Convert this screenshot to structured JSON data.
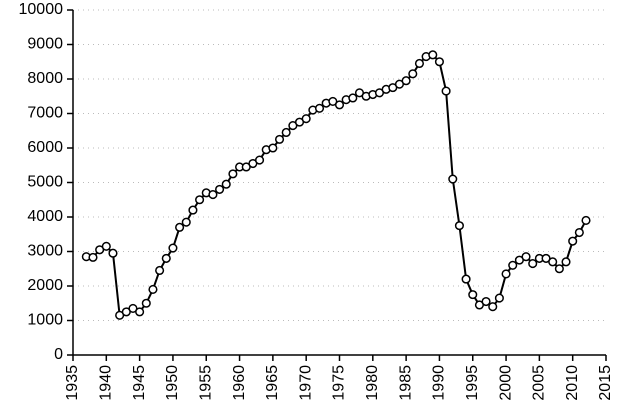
{
  "chart_data": {
    "type": "line",
    "x": [
      1937,
      1938,
      1939,
      1940,
      1941,
      1942,
      1943,
      1944,
      1945,
      1946,
      1947,
      1948,
      1949,
      1950,
      1951,
      1952,
      1953,
      1954,
      1955,
      1956,
      1957,
      1958,
      1959,
      1960,
      1961,
      1962,
      1963,
      1964,
      1965,
      1966,
      1967,
      1968,
      1969,
      1970,
      1971,
      1972,
      1973,
      1974,
      1975,
      1976,
      1977,
      1978,
      1979,
      1980,
      1981,
      1982,
      1983,
      1984,
      1985,
      1986,
      1987,
      1988,
      1989,
      1990,
      1991,
      1992,
      1993,
      1994,
      1995,
      1996,
      1997,
      1998,
      1999,
      2000,
      2001,
      2002,
      2003,
      2004,
      2005,
      2006,
      2007,
      2008,
      2009,
      2010,
      2011,
      2012
    ],
    "values": [
      2850,
      2830,
      3050,
      3150,
      2950,
      1150,
      1250,
      1350,
      1250,
      1500,
      1900,
      2450,
      2800,
      3100,
      3700,
      3850,
      4200,
      4500,
      4700,
      4650,
      4800,
      4950,
      5250,
      5450,
      5450,
      5550,
      5650,
      5950,
      6000,
      6250,
      6450,
      6650,
      6750,
      6850,
      7100,
      7150,
      7300,
      7350,
      7250,
      7400,
      7450,
      7600,
      7500,
      7550,
      7600,
      7700,
      7750,
      7850,
      7950,
      8150,
      8450,
      8650,
      8700,
      8500,
      7650,
      5100,
      3750,
      2200,
      1750,
      1450,
      1550,
      1400,
      1650,
      2350,
      2600,
      2750,
      2850,
      2650,
      2800,
      2800,
      2700,
      2500,
      2700,
      3300,
      3550,
      3900
    ],
    "color": "#000000",
    "xlim": [
      1935,
      2015
    ],
    "xticks": [
      1935,
      1940,
      1945,
      1950,
      1955,
      1960,
      1965,
      1970,
      1975,
      1980,
      1985,
      1990,
      1995,
      2000,
      2005,
      2010,
      2015
    ],
    "ylim": [
      0,
      10000
    ],
    "yticks": [
      0,
      1000,
      2000,
      3000,
      4000,
      5000,
      6000,
      7000,
      8000,
      9000,
      10000
    ],
    "grid": true
  }
}
